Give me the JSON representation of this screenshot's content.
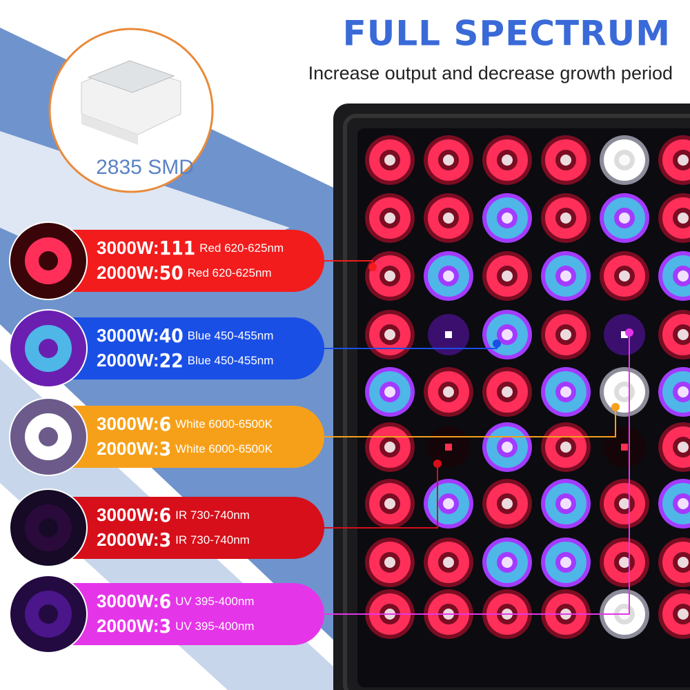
{
  "header": {
    "title": "FULL SPECTRUM",
    "subtitle": "Increase output and decrease growth period"
  },
  "chip": {
    "label": "2835 SMD"
  },
  "specs": [
    {
      "rows": [
        {
          "model": "3000W:",
          "count": "111",
          "spec": "Red 620-625nm"
        },
        {
          "model": "2000W:",
          "count": "50",
          "spec": "Red 620-625nm"
        }
      ]
    },
    {
      "rows": [
        {
          "model": "3000W:",
          "count": "40",
          "spec": "Blue 450-455nm"
        },
        {
          "model": "2000W:",
          "count": "22",
          "spec": "Blue 450-455nm"
        }
      ]
    },
    {
      "rows": [
        {
          "model": "3000W:",
          "count": "6",
          "spec": "White 6000-6500K"
        },
        {
          "model": "2000W:",
          "count": "3",
          "spec": "White 6000-6500K"
        }
      ]
    },
    {
      "rows": [
        {
          "model": "3000W:",
          "count": "6",
          "spec": "IR 730-740nm"
        },
        {
          "model": "2000W:",
          "count": "3",
          "spec": "IR 730-740nm"
        }
      ]
    },
    {
      "rows": [
        {
          "model": "3000W:",
          "count": "6",
          "spec": "UV 395-400nm"
        },
        {
          "model": "2000W:",
          "count": "3",
          "spec": "UV 395-400nm"
        }
      ]
    }
  ]
}
